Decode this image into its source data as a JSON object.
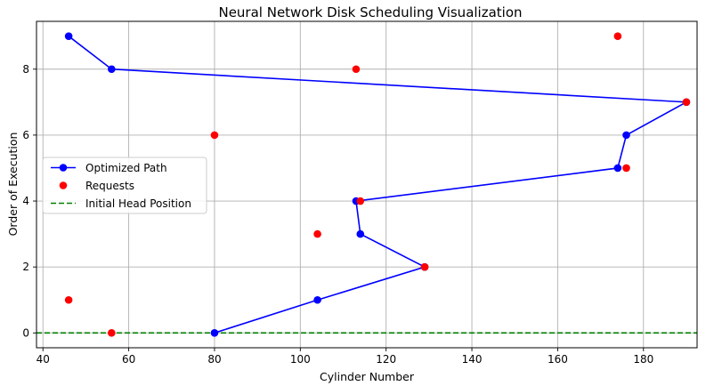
{
  "chart_data": {
    "type": "line",
    "title": "Neural Network Disk Scheduling Visualization",
    "xlabel": "Cylinder Number",
    "ylabel": "Order of Execution",
    "xlim": [
      38.5,
      192.5
    ],
    "ylim": [
      -0.45,
      9.45
    ],
    "xticks": [
      40,
      60,
      80,
      100,
      120,
      140,
      160,
      180
    ],
    "yticks": [
      0,
      2,
      4,
      6,
      8
    ],
    "grid": true,
    "legend_position": "center-left",
    "series": [
      {
        "name": "Optimized Path",
        "type": "line",
        "color": "#0000ff",
        "x": [
          80,
          104,
          129,
          114,
          113,
          174,
          176,
          190,
          56,
          46
        ],
        "y": [
          0,
          1,
          2,
          3,
          4,
          5,
          6,
          7,
          8,
          9
        ]
      },
      {
        "name": "Requests",
        "type": "scatter",
        "color": "#ff0000",
        "x": [
          56,
          46,
          129,
          104,
          114,
          176,
          80,
          190,
          113,
          174
        ],
        "y": [
          0,
          1,
          2,
          3,
          4,
          5,
          6,
          7,
          8,
          9
        ]
      },
      {
        "name": "Initial Head Position",
        "type": "hline",
        "color": "#008000",
        "y": 0
      }
    ]
  }
}
